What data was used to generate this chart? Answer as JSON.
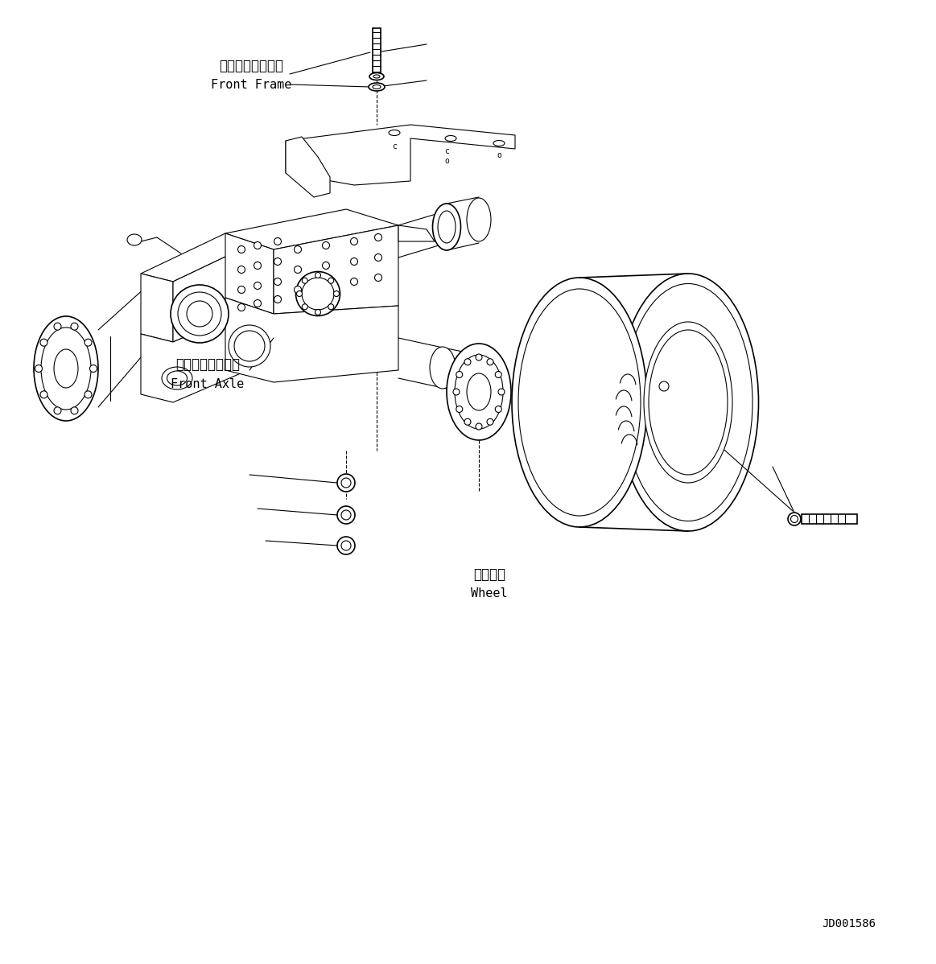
{
  "background_color": "#ffffff",
  "line_color": "#000000",
  "fig_width": 11.63,
  "fig_height": 11.98,
  "label_front_frame_jp": "フロントフレーム",
  "label_front_frame_en": "Front Frame",
  "label_front_axle_jp": "フロントアクスル",
  "label_front_axle_en": "Front Axle",
  "label_wheel_jp": "ホイール",
  "label_wheel_en": "Wheel",
  "label_code": "JD001586",
  "lw": 0.8,
  "lw2": 1.2,
  "lw3": 1.6
}
